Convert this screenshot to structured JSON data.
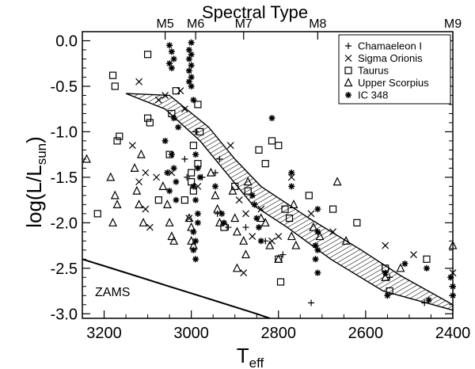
{
  "chart_data": {
    "type": "scatter",
    "top_axis_title": "Spectral Type",
    "top_ticks": [
      {
        "label": "M5",
        "x": 3060
      },
      {
        "label": "M6",
        "x": 2990
      },
      {
        "label": "M7",
        "x": 2880
      },
      {
        "label": "M8",
        "x": 2710
      },
      {
        "label": "M9",
        "x": 2400
      }
    ],
    "xlabel": "T",
    "xlabel_sub": "eff",
    "ylabel_prefix": "log(L/L",
    "ylabel_sub": "sun",
    "ylabel_suffix": ")",
    "xlim": [
      3250,
      2400
    ],
    "ylim": [
      -3.05,
      0.1
    ],
    "x_ticks": [
      "3200",
      "3000",
      "2800",
      "2600",
      "2400"
    ],
    "y_ticks": [
      "0.0",
      "-0.5",
      "-1.0",
      "-1.5",
      "-2.0",
      "-2.5",
      "-3.0"
    ],
    "annotation": "ZAMS",
    "legend_position": "top-right",
    "series": [
      {
        "name": "Chamaeleon I",
        "marker": "plus",
        "points": [
          [
            3015,
            -1.3
          ],
          [
            2990,
            -1.0
          ],
          [
            3010,
            -1.5
          ],
          [
            2940,
            -1.9
          ],
          [
            2915,
            -2.05
          ],
          [
            2875,
            -2.05
          ],
          [
            2830,
            -2.2
          ],
          [
            2790,
            -2.35
          ],
          [
            2725,
            -2.88
          ],
          [
            2545,
            -2.6
          ],
          [
            2465,
            -2.88
          ],
          [
            2975,
            -1.5
          ],
          [
            2945,
            -1.45
          ],
          [
            2935,
            -1.3
          ]
        ]
      },
      {
        "name": "Sigma Orionis",
        "marker": "x",
        "points": [
          [
            3120,
            -0.45
          ],
          [
            3075,
            -0.65
          ],
          [
            3060,
            -0.6
          ],
          [
            3025,
            -0.55
          ],
          [
            3015,
            -0.75
          ],
          [
            3120,
            -1.55
          ],
          [
            3105,
            -1.45
          ],
          [
            3080,
            -1.5
          ],
          [
            2985,
            -1.6
          ],
          [
            2890,
            -1.75
          ],
          [
            2875,
            -1.9
          ],
          [
            2860,
            -2.15
          ],
          [
            2840,
            -1.85
          ],
          [
            2815,
            -2.2
          ],
          [
            2800,
            -2.15
          ],
          [
            2770,
            -1.5
          ],
          [
            2725,
            -1.9
          ],
          [
            2675,
            -2.1
          ],
          [
            2555,
            -2.25
          ],
          [
            2490,
            -2.35
          ],
          [
            2400,
            -2.55
          ],
          [
            3135,
            -1.15
          ],
          [
            3105,
            -1.85
          ],
          [
            3095,
            -2.05
          ],
          [
            3045,
            -1.45
          ],
          [
            3005,
            -1.95
          ],
          [
            2880,
            -2.55
          ],
          [
            2910,
            -1.15
          ]
        ]
      },
      {
        "name": "Taurus",
        "marker": "square",
        "points": [
          [
            3180,
            -0.38
          ],
          [
            3175,
            -0.5
          ],
          [
            3165,
            -1.05
          ],
          [
            3170,
            -1.1
          ],
          [
            3100,
            -0.15
          ],
          [
            3100,
            -0.85
          ],
          [
            3095,
            -0.9
          ],
          [
            3045,
            -0.8
          ],
          [
            3035,
            -0.55
          ],
          [
            2985,
            -0.7
          ],
          [
            2980,
            -1.0
          ],
          [
            2995,
            -1.15
          ],
          [
            2985,
            -1.35
          ],
          [
            3000,
            -1.45
          ],
          [
            3000,
            -1.55
          ],
          [
            3015,
            -1.75
          ],
          [
            2995,
            -1.65
          ],
          [
            2900,
            -1.6
          ],
          [
            2870,
            -1.65
          ],
          [
            2845,
            -1.2
          ],
          [
            2830,
            -1.35
          ],
          [
            2815,
            -1.1
          ],
          [
            2800,
            -1.15
          ],
          [
            2785,
            -1.85
          ],
          [
            2775,
            -1.95
          ],
          [
            2730,
            -1.7
          ],
          [
            2675,
            -1.85
          ],
          [
            2620,
            -2.0
          ],
          [
            2555,
            -2.5
          ],
          [
            2545,
            -2.75
          ],
          [
            2460,
            -2.4
          ],
          [
            2795,
            -2.65
          ],
          [
            2800,
            -2.4
          ],
          [
            3215,
            -1.9
          ],
          [
            3050,
            -1.25
          ],
          [
            3075,
            -1.75
          ],
          [
            2925,
            -2.05
          ]
        ]
      },
      {
        "name": "Upper Scorpius",
        "marker": "triangle",
        "points": [
          [
            3240,
            -1.3
          ],
          [
            3185,
            -1.5
          ],
          [
            3175,
            -1.7
          ],
          [
            3170,
            -1.8
          ],
          [
            3130,
            -1.4
          ],
          [
            3125,
            -1.65
          ],
          [
            3120,
            -1.8
          ],
          [
            3110,
            -2.0
          ],
          [
            3065,
            -1.6
          ],
          [
            3055,
            -1.8
          ],
          [
            3050,
            -2.0
          ],
          [
            3045,
            -2.15
          ],
          [
            3040,
            -2.2
          ],
          [
            3005,
            -1.95
          ],
          [
            3000,
            -2.05
          ],
          [
            3000,
            -2.2
          ],
          [
            2995,
            -2.25
          ],
          [
            2945,
            -1.7
          ],
          [
            2940,
            -1.85
          ],
          [
            2935,
            -2.0
          ],
          [
            2905,
            -1.65
          ],
          [
            2900,
            -1.95
          ],
          [
            2895,
            -2.1
          ],
          [
            2880,
            -2.2
          ],
          [
            2875,
            -2.35
          ],
          [
            2840,
            -1.95
          ],
          [
            2830,
            -2.0
          ],
          [
            2820,
            -2.25
          ],
          [
            2800,
            -2.4
          ],
          [
            2770,
            -2.15
          ],
          [
            2760,
            -2.25
          ],
          [
            2720,
            -2.05
          ],
          [
            2705,
            -2.15
          ],
          [
            2665,
            -1.55
          ],
          [
            2645,
            -2.2
          ],
          [
            2555,
            -2.6
          ],
          [
            2520,
            -2.5
          ],
          [
            2400,
            -2.25
          ],
          [
            2895,
            -2.5
          ],
          [
            2765,
            -1.8
          ],
          [
            3180,
            -2.0
          ],
          [
            3115,
            -1.25
          ],
          [
            2955,
            -1.45
          ],
          [
            2870,
            -1.55
          ]
        ]
      },
      {
        "name": "IC 348",
        "marker": "asterisk",
        "points": [
          [
            3050,
            -0.05
          ],
          [
            3045,
            -0.12
          ],
          [
            3040,
            -0.2
          ],
          [
            3050,
            -0.25
          ],
          [
            3045,
            -0.3
          ],
          [
            3000,
            -0.02
          ],
          [
            3005,
            -0.1
          ],
          [
            3000,
            -0.15
          ],
          [
            3005,
            -0.2
          ],
          [
            3000,
            -0.27
          ],
          [
            3005,
            -0.33
          ],
          [
            3000,
            -0.4
          ],
          [
            3005,
            -0.45
          ],
          [
            3000,
            -0.5
          ],
          [
            2995,
            -0.65
          ],
          [
            3040,
            -0.85
          ],
          [
            3030,
            -0.95
          ],
          [
            3045,
            -1.25
          ],
          [
            3040,
            -1.4
          ],
          [
            3035,
            -1.55
          ],
          [
            3050,
            -1.65
          ],
          [
            3035,
            -1.75
          ],
          [
            2990,
            -1.25
          ],
          [
            2985,
            -1.4
          ],
          [
            2980,
            -1.5
          ],
          [
            2995,
            -1.6
          ],
          [
            2990,
            -1.75
          ],
          [
            2985,
            -1.9
          ],
          [
            2985,
            -2.0
          ],
          [
            2995,
            -2.1
          ],
          [
            2990,
            -2.2
          ],
          [
            2995,
            -2.3
          ],
          [
            2990,
            -2.4
          ],
          [
            2945,
            -1.6
          ],
          [
            2930,
            -1.9
          ],
          [
            2925,
            -2.0
          ],
          [
            2860,
            -1.7
          ],
          [
            2855,
            -1.8
          ],
          [
            2850,
            -1.95
          ],
          [
            2845,
            -2.05
          ],
          [
            2840,
            -2.2
          ],
          [
            2815,
            -0.85
          ],
          [
            2710,
            -2.1
          ],
          [
            2715,
            -2.25
          ],
          [
            2710,
            -2.3
          ],
          [
            2715,
            -2.4
          ],
          [
            2710,
            -2.55
          ],
          [
            2555,
            -2.55
          ],
          [
            2550,
            -2.8
          ],
          [
            2510,
            -2.45
          ],
          [
            2460,
            -2.5
          ],
          [
            2455,
            -2.85
          ],
          [
            2400,
            -2.8
          ],
          [
            2405,
            -2.6
          ],
          [
            2400,
            -2.7
          ],
          [
            2770,
            -1.45
          ],
          [
            2770,
            -1.6
          ],
          [
            3060,
            -1.1
          ],
          [
            3055,
            -1.45
          ],
          [
            2710,
            -1.85
          ]
        ]
      }
    ],
    "band": {
      "upper": [
        [
          3150,
          -0.58
        ],
        [
          3050,
          -0.6
        ],
        [
          2960,
          -0.95
        ],
        [
          2900,
          -1.3
        ],
        [
          2840,
          -1.6
        ],
        [
          2730,
          -1.95
        ],
        [
          2610,
          -2.3
        ],
        [
          2520,
          -2.58
        ],
        [
          2400,
          -2.9
        ]
      ],
      "lower": [
        [
          3150,
          -0.58
        ],
        [
          3060,
          -0.75
        ],
        [
          2980,
          -1.1
        ],
        [
          2920,
          -1.45
        ],
        [
          2860,
          -1.8
        ],
        [
          2780,
          -2.05
        ],
        [
          2680,
          -2.4
        ],
        [
          2560,
          -2.75
        ],
        [
          2400,
          -2.96
        ]
      ]
    },
    "zams_line": [
      [
        3250,
        -2.4
      ],
      [
        3150,
        -2.55
      ],
      [
        3050,
        -2.7
      ],
      [
        2950,
        -2.85
      ],
      [
        2850,
        -3.0
      ],
      [
        2820,
        -3.05
      ]
    ]
  }
}
